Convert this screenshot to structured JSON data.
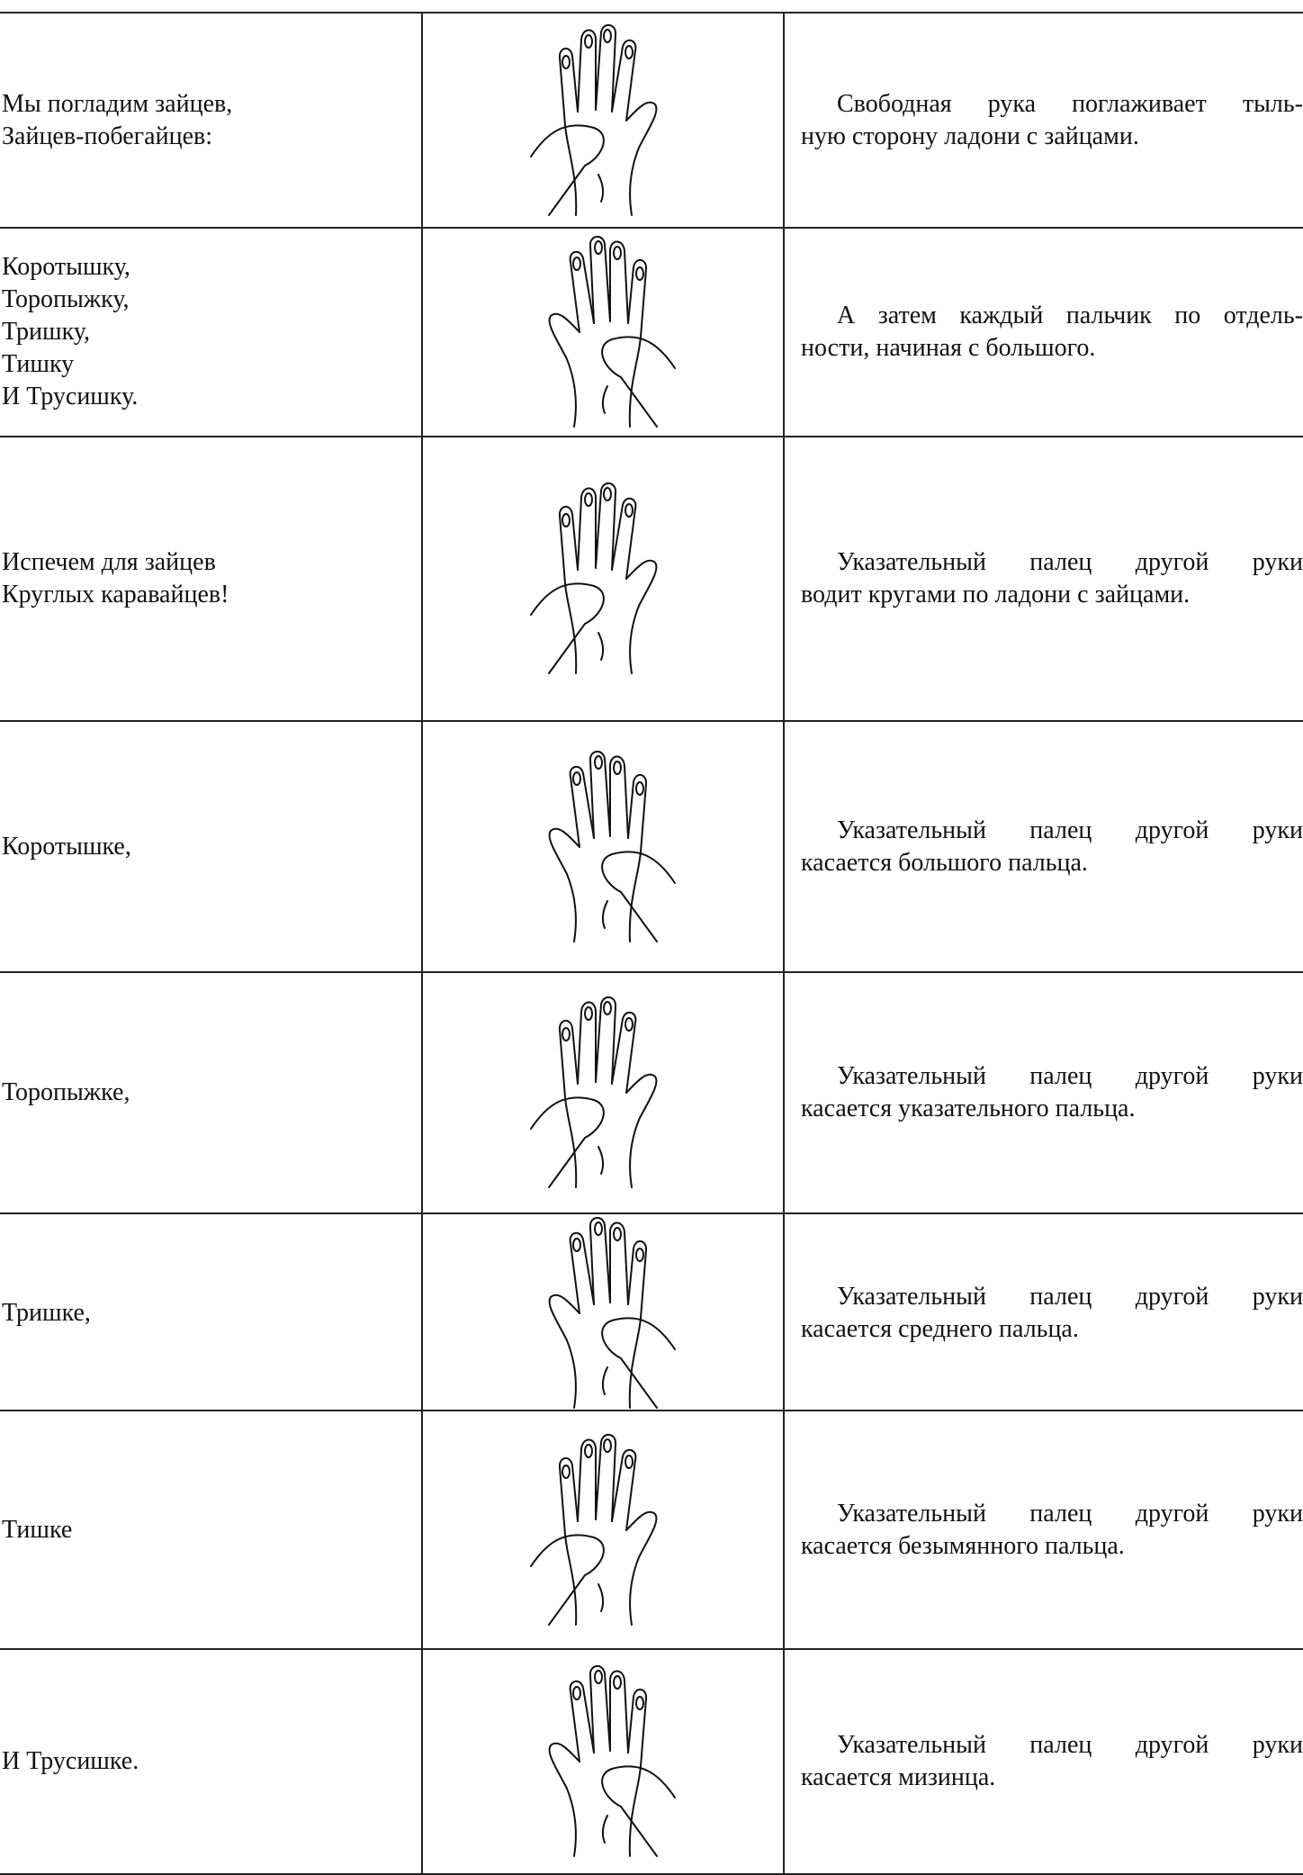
{
  "rows": [
    {
      "verse": [
        "Мы погладим зайцев,",
        "Зайцев-побегайцев:"
      ],
      "action": [
        "Свободная рука поглаживает тыль-",
        "ную сторону ладони с зайцами."
      ]
    },
    {
      "verse": [
        "Коротышку,",
        "Торопыжку,",
        "Тришку,",
        "Тишку",
        "И Трусишку."
      ],
      "action": [
        "А затем каждый пальчик по отдель-",
        "ности, начиная с большого."
      ]
    },
    {
      "verse": [
        "Испечем для зайцев",
        "Круглых каравайцев!"
      ],
      "action": [
        "Указательный палец другой руки",
        "водит кругами по ладони с зайцами."
      ]
    },
    {
      "verse": [
        "Коротышке,"
      ],
      "action": [
        "Указательный палец другой руки",
        "касается большого пальца."
      ]
    },
    {
      "verse": [
        "Торопыжке,"
      ],
      "action": [
        "Указательный палец другой руки",
        "касается указательного пальца."
      ]
    },
    {
      "verse": [
        "Тришке,"
      ],
      "action": [
        "Указательный палец другой руки",
        "касается среднего пальца."
      ]
    },
    {
      "verse": [
        "Тишке"
      ],
      "action": [
        "Указательный палец другой руки",
        "касается безымянного пальца."
      ]
    },
    {
      "verse": [
        "И Трусишке."
      ],
      "action": [
        "Указательный палец другой руки",
        "касается мизинца."
      ]
    }
  ]
}
